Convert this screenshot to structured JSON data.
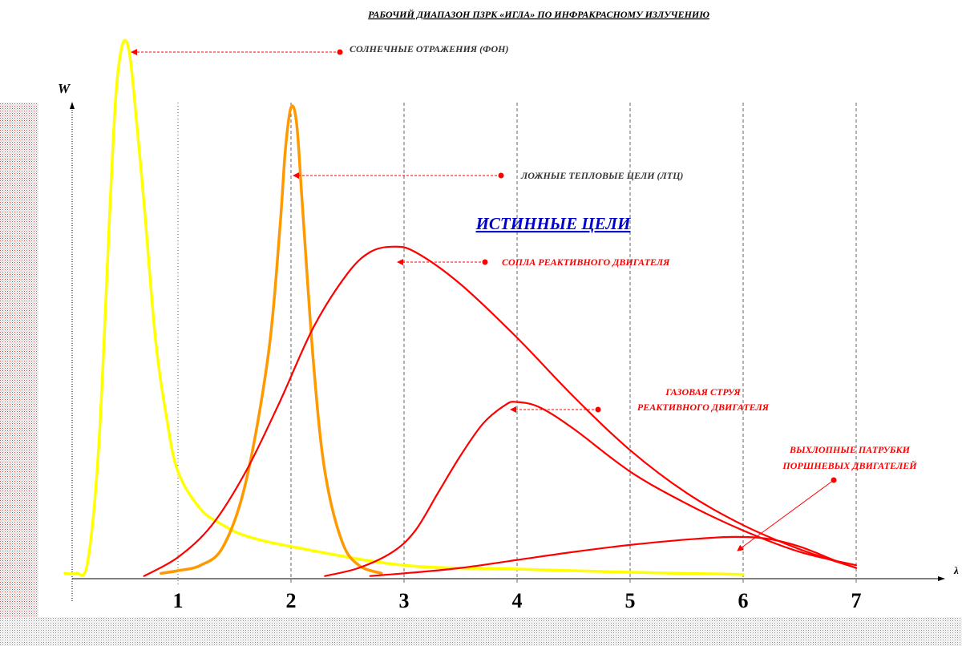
{
  "chart_data": {
    "type": "line",
    "title": "РАБОЧИЙ ДИАПАЗОН ПЗРК «ИГЛА» ПО ИНФРАКРАСНОМУ ИЗЛУЧЕНИЮ",
    "xlabel": "λ",
    "ylabel": "W",
    "xlim": [
      -0.9,
      7.6
    ],
    "ylim": [
      0,
      1
    ],
    "x_ticks": [
      "1",
      "2",
      "3",
      "4",
      "5",
      "6",
      "7"
    ],
    "grid": "vertical dashed lines at each tick",
    "section_title": "ИСТИННЫЕ ЦЕЛИ",
    "colors": {
      "sun": "#ffff00",
      "flares": "#ff9900",
      "targets": "#ff0000",
      "section_title": "#0000cc",
      "annotation": "#ff0000",
      "annotation_dark": "#333333"
    },
    "series": [
      {
        "name": "СОЛНЕЧНЫЕ ОТРАЖЕНИЯ (ФОН)",
        "color": "#ffff00",
        "points": [
          [
            -0.0,
            0.01
          ],
          [
            0.1,
            0.01
          ],
          [
            0.2,
            0.03
          ],
          [
            0.3,
            0.25
          ],
          [
            0.4,
            0.7
          ],
          [
            0.45,
            0.9
          ],
          [
            0.5,
            0.99
          ],
          [
            0.55,
            1.0
          ],
          [
            0.6,
            0.93
          ],
          [
            0.7,
            0.7
          ],
          [
            0.8,
            0.45
          ],
          [
            0.9,
            0.3
          ],
          [
            1.0,
            0.2
          ],
          [
            1.2,
            0.13
          ],
          [
            1.4,
            0.1
          ],
          [
            1.6,
            0.08
          ],
          [
            2.0,
            0.06
          ],
          [
            3.0,
            0.025
          ],
          [
            4.0,
            0.018
          ],
          [
            5.0,
            0.012
          ],
          [
            6.0,
            0.008
          ]
        ]
      },
      {
        "name": "ЛОЖНЫЕ ТЕПЛОВЫЕ ЦЕЛИ (ЛТЦ)",
        "color": "#ff9900",
        "points": [
          [
            0.85,
            0.01
          ],
          [
            1.0,
            0.015
          ],
          [
            1.2,
            0.025
          ],
          [
            1.4,
            0.06
          ],
          [
            1.6,
            0.18
          ],
          [
            1.8,
            0.42
          ],
          [
            1.9,
            0.65
          ],
          [
            1.95,
            0.8
          ],
          [
            2.0,
            0.88
          ],
          [
            2.05,
            0.85
          ],
          [
            2.1,
            0.7
          ],
          [
            2.2,
            0.4
          ],
          [
            2.3,
            0.2
          ],
          [
            2.45,
            0.07
          ],
          [
            2.6,
            0.025
          ],
          [
            2.8,
            0.01
          ]
        ]
      },
      {
        "name": "СОПЛА РЕАКТИВНОГО ДВИГАТЕЛЯ",
        "color": "#ff0000",
        "points": [
          [
            0.7,
            0.005
          ],
          [
            1.0,
            0.04
          ],
          [
            1.3,
            0.1
          ],
          [
            1.6,
            0.2
          ],
          [
            1.9,
            0.33
          ],
          [
            2.2,
            0.47
          ],
          [
            2.5,
            0.57
          ],
          [
            2.7,
            0.61
          ],
          [
            2.9,
            0.62
          ],
          [
            3.1,
            0.61
          ],
          [
            3.5,
            0.55
          ],
          [
            4.0,
            0.45
          ],
          [
            4.5,
            0.34
          ],
          [
            5.0,
            0.24
          ],
          [
            5.5,
            0.16
          ],
          [
            6.0,
            0.1
          ],
          [
            6.5,
            0.055
          ],
          [
            7.0,
            0.02
          ]
        ]
      },
      {
        "name": "ГАЗОВАЯ СТРУЯ РЕАКТИВНОГО ДВИГАТЕЛЯ",
        "color": "#ff0000",
        "points": [
          [
            2.3,
            0.005
          ],
          [
            2.6,
            0.02
          ],
          [
            2.9,
            0.05
          ],
          [
            3.1,
            0.09
          ],
          [
            3.3,
            0.16
          ],
          [
            3.5,
            0.23
          ],
          [
            3.7,
            0.29
          ],
          [
            3.9,
            0.325
          ],
          [
            4.0,
            0.33
          ],
          [
            4.2,
            0.32
          ],
          [
            4.5,
            0.28
          ],
          [
            5.0,
            0.2
          ],
          [
            5.5,
            0.14
          ],
          [
            6.0,
            0.09
          ],
          [
            6.5,
            0.05
          ],
          [
            7.0,
            0.025
          ]
        ]
      },
      {
        "name": "ВЫХЛОПНЫЕ ПАТРУБКИ ПОРШНЕВЫХ ДВИГАТЕЛЕЙ",
        "color": "#ff0000",
        "points": [
          [
            2.7,
            0.005
          ],
          [
            3.0,
            0.01
          ],
          [
            3.5,
            0.02
          ],
          [
            4.0,
            0.035
          ],
          [
            4.5,
            0.05
          ],
          [
            5.0,
            0.063
          ],
          [
            5.5,
            0.073
          ],
          [
            5.9,
            0.078
          ],
          [
            6.2,
            0.075
          ],
          [
            6.5,
            0.06
          ],
          [
            6.8,
            0.035
          ],
          [
            7.0,
            0.02
          ]
        ]
      }
    ],
    "annotations": [
      {
        "text": "СОЛНЕЧНЫЕ ОТРАЖЕНИЯ (ФОН)",
        "color": "#333333"
      },
      {
        "text": "ЛОЖНЫЕ ТЕПЛОВЫЕ ЦЕЛИ (ЛТЦ)",
        "color": "#333333"
      },
      {
        "text": "СОПЛА РЕАКТИВНОГО ДВИГАТЕЛЯ",
        "color": "#ff0000"
      },
      {
        "text": "ГАЗОВАЯ СТРУЯ",
        "color": "#ff0000"
      },
      {
        "text": "РЕАКТИВНОГО ДВИГАТЕЛЯ",
        "color": "#ff0000"
      },
      {
        "text": "ВЫХЛОПНЫЕ ПАТРУБКИ",
        "color": "#ff0000"
      },
      {
        "text": "ПОРШНЕВЫХ ДВИГАТЕЛЕЙ",
        "color": "#ff0000"
      }
    ]
  }
}
